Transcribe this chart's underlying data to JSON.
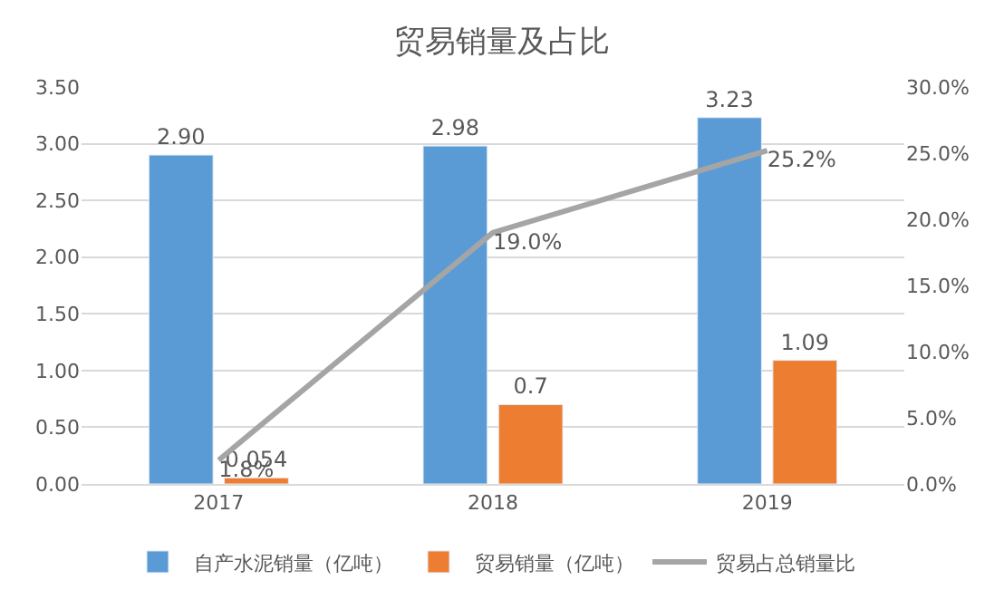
{
  "chart_data": {
    "type": "bar",
    "title": "贸易销量及占比",
    "categories": [
      "2017",
      "2018",
      "2019"
    ],
    "series": [
      {
        "name": "自产水泥销量（亿吨）",
        "color": "#5b9bd5",
        "values": [
          2.9,
          2.98,
          3.23
        ],
        "value_labels": [
          "2.90",
          "2.98",
          "3.23"
        ]
      },
      {
        "name": "贸易销量（亿吨）",
        "color": "#ed7d31",
        "values": [
          0.054,
          0.7,
          1.09
        ],
        "value_labels": [
          "0.054",
          "0.7",
          "1.09"
        ]
      },
      {
        "name": "贸易占总销量比",
        "type": "line",
        "axis": "y2",
        "color": "#a5a5a5",
        "values": [
          1.8,
          19.0,
          25.2
        ],
        "value_labels": [
          "1.8%",
          "19.0%",
          "25.2%"
        ]
      }
    ],
    "ylim": [
      0,
      3.5
    ],
    "yticks": [
      {
        "value": 0,
        "label": "0.00"
      },
      {
        "value": 0.5,
        "label": "0.50"
      },
      {
        "value": 1,
        "label": "1.00"
      },
      {
        "value": 1.5,
        "label": "1.50"
      },
      {
        "value": 2,
        "label": "2.00"
      },
      {
        "value": 2.5,
        "label": "2.50"
      },
      {
        "value": 3,
        "label": "3.00"
      },
      {
        "value": 3.5,
        "label": "3.50"
      }
    ],
    "y2lim": [
      0,
      30
    ],
    "y2ticks": [
      {
        "value": 0,
        "label": "0.0%"
      },
      {
        "value": 5,
        "label": "5.0%"
      },
      {
        "value": 10,
        "label": "10.0%"
      },
      {
        "value": 15,
        "label": "15.0%"
      },
      {
        "value": 20,
        "label": "20.0%"
      },
      {
        "value": 25,
        "label": "25.0%"
      },
      {
        "value": 30,
        "label": "30.0%"
      }
    ],
    "grid": "y",
    "legend": "bottom",
    "marker": "none",
    "line_style": "solid"
  }
}
